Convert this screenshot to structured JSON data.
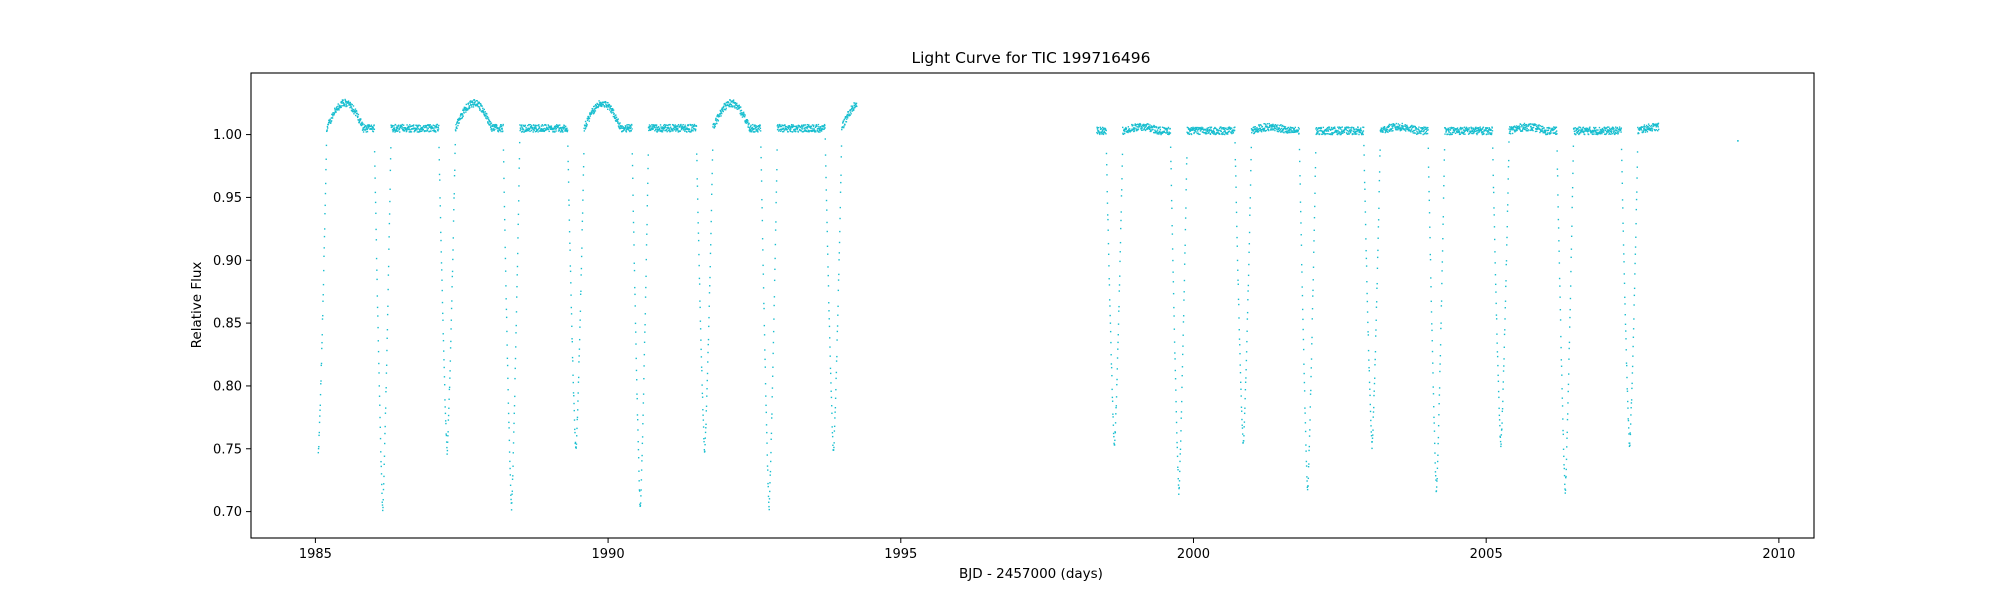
{
  "chart_data": {
    "type": "scatter",
    "title": "Light Curve for TIC 199716496",
    "xlabel": "BJD - 2457000 (days)",
    "ylabel": "Relative Flux",
    "xlim": [
      1983.9,
      2010.6
    ],
    "ylim": [
      0.679,
      1.049
    ],
    "xticks": [
      1985,
      1990,
      1995,
      2000,
      2005,
      2010
    ],
    "yticks": [
      0.7,
      0.75,
      0.8,
      0.85,
      0.9,
      0.95,
      1.0
    ],
    "xtick_labels": [
      "1985",
      "1990",
      "1995",
      "2000",
      "2005",
      "2010"
    ],
    "ytick_labels": [
      "0.70",
      "0.75",
      "0.80",
      "0.85",
      "0.90",
      "0.95",
      "1.00"
    ],
    "grid": false,
    "legend": null,
    "series_color": "#17becf",
    "segments": [
      {
        "x_start": 1985.05,
        "x_end": 1994.25,
        "period_days": 2.2,
        "first_primary_minimum": 1985.05,
        "primary_depth": 0.748,
        "secondary_depth": 0.702,
        "baseline_flux": 1.005,
        "brightening_peak_flux": 1.025
      },
      {
        "x_start": 1998.35,
        "x_end": 2007.95,
        "period_days": 2.2,
        "first_primary_minimum": 1998.65,
        "primary_depth": 0.752,
        "secondary_depth": 0.715,
        "baseline_flux": 1.003,
        "brightening_peak_flux": 1.006
      }
    ],
    "isolated_points": [
      {
        "x": 2009.3,
        "y": 0.995
      }
    ]
  }
}
